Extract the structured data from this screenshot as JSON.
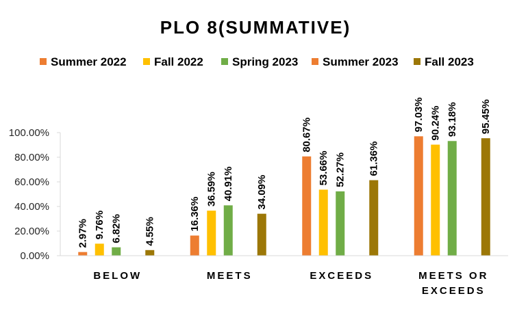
{
  "chart_data": {
    "type": "bar",
    "title": "PLO 8(SUMMATIVE)",
    "categories": [
      [
        "BELOW"
      ],
      [
        "MEETS"
      ],
      [
        "EXCEEDS"
      ],
      [
        "MEETS OR",
        "EXCEEDS"
      ]
    ],
    "series": [
      {
        "name": "Summer 2022",
        "color": "#ED7D31",
        "values": [
          2.97,
          16.36,
          80.67,
          97.03
        ],
        "labels": [
          "2.97%",
          "16.36%",
          "80.67%",
          "97.03%"
        ]
      },
      {
        "name": "Fall 2022",
        "color": "#FFC000",
        "values": [
          9.76,
          36.59,
          53.66,
          90.24
        ],
        "labels": [
          "9.76%",
          "36.59%",
          "53.66%",
          "90.24%"
        ]
      },
      {
        "name": "Spring 2023",
        "color": "#70AD47",
        "values": [
          6.82,
          40.91,
          52.27,
          93.18
        ],
        "labels": [
          "6.82%",
          "40.91%",
          "52.27%",
          "93.18%"
        ]
      },
      {
        "name": "Summer 2023",
        "color": "#ED7D31",
        "values": [
          null,
          null,
          null,
          null
        ],
        "labels": [
          "",
          "",
          "",
          ""
        ]
      },
      {
        "name": "Fall 2023",
        "color": "#9C7707",
        "values": [
          4.55,
          34.09,
          61.36,
          95.45
        ],
        "labels": [
          "4.55%",
          "34.09%",
          "61.36%",
          "95.45%"
        ]
      }
    ],
    "yticks": [
      "0.00%",
      "20.00%",
      "40.00%",
      "60.00%",
      "80.00%",
      "100.00%"
    ],
    "ylim": [
      0,
      100
    ],
    "xlabel": "",
    "ylabel": "",
    "grid": false,
    "legend_position": "top"
  }
}
